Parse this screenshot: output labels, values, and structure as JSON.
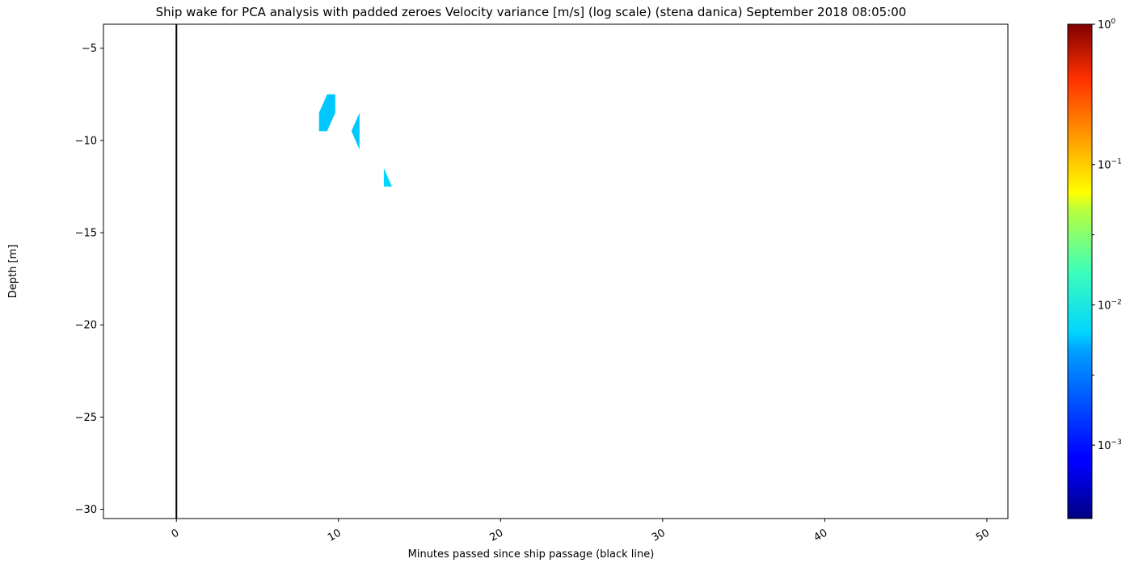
{
  "chart_data": {
    "type": "heatmap",
    "title": "Ship wake for PCA analysis with padded zeroes Velocity variance [m/s] (log scale) (stena danica) September 2018 08:05:00",
    "xlabel": "Minutes passed since ship passage (black line)",
    "ylabel": "Depth [m]",
    "xlim": [
      -4.5,
      51.3
    ],
    "ylim": [
      -30.5,
      -3.7
    ],
    "xticks": [
      0,
      10,
      20,
      30,
      40,
      50
    ],
    "xtick_labels": [
      "0",
      "10",
      "20",
      "30",
      "40",
      "50"
    ],
    "yticks": [
      -5,
      -10,
      -15,
      -20,
      -25,
      -30
    ],
    "ytick_labels": [
      "−5",
      "−10",
      "−15",
      "−20",
      "−25",
      "−30"
    ],
    "ship_passage_line": {
      "x": 0,
      "color": "#000000"
    },
    "grid": false,
    "colormap": "jet",
    "colorbar": {
      "scale": "log",
      "vmin": 0.0003,
      "vmax": 1,
      "major_ticks": [
        {
          "value": 1,
          "base": "10",
          "exp": "0"
        },
        {
          "value": 0.1,
          "base": "10",
          "exp": "−1"
        },
        {
          "value": 0.01,
          "base": "10",
          "exp": "−2"
        },
        {
          "value": 0.001,
          "base": "10",
          "exp": "−3"
        }
      ],
      "minor_ticks": [
        0.0316,
        0.00316
      ]
    },
    "regions": [
      {
        "value": 0.0045,
        "color": "#00c8ff",
        "polygon": [
          [
            8.8,
            -9.5
          ],
          [
            8.8,
            -8.5
          ],
          [
            9.3,
            -7.5
          ],
          [
            9.8,
            -7.5
          ],
          [
            9.8,
            -8.5
          ],
          [
            9.3,
            -9.5
          ]
        ]
      },
      {
        "value": 0.0045,
        "color": "#00c8ff",
        "polygon": [
          [
            10.8,
            -9.5
          ],
          [
            11.3,
            -8.5
          ],
          [
            11.3,
            -10.5
          ]
        ]
      },
      {
        "value": 0.0045,
        "color": "#00d8ff",
        "polygon": [
          [
            12.8,
            -11.5
          ],
          [
            13.3,
            -12.5
          ],
          [
            12.8,
            -12.5
          ]
        ]
      }
    ]
  }
}
